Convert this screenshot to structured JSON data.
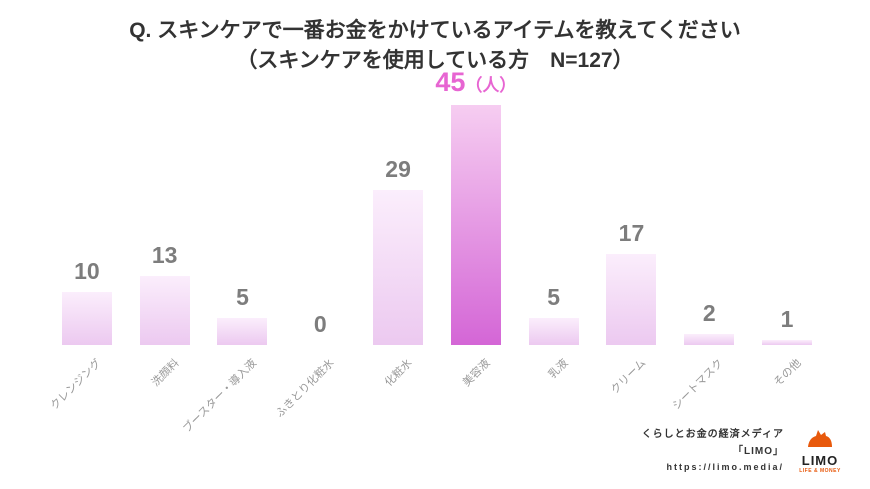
{
  "title": {
    "line1": "Q. スキンケアで一番お金をかけているアイテムを教えてください",
    "line2": "（スキンケアを使用している方　N=127）"
  },
  "chart_data": {
    "type": "bar",
    "title": "Q. スキンケアで一番お金をかけているアイテムを教えてください（スキンケアを使用している方 N=127）",
    "categories": [
      "クレンジング",
      "洗顔料",
      "ブースター・導入液",
      "ふきとり化粧水",
      "化粧水",
      "美容液",
      "乳液",
      "クリーム",
      "シートマスク",
      "その他"
    ],
    "values": [
      10,
      13,
      5,
      0,
      29,
      45,
      5,
      17,
      2,
      1
    ],
    "unit": "人",
    "n": 127,
    "highlight_index": 5,
    "highlight_unit": "（人）",
    "xlabel": "",
    "ylabel": "",
    "ylim": [
      0,
      45
    ],
    "grid": false,
    "legend": false,
    "bar_color_top": "#fbeefc",
    "bar_color_bottom": "#ecc9f0",
    "highlight_color_top": "#f6cdf1",
    "highlight_color_bottom": "#d466d6",
    "value_label_color": "#7d7d7d",
    "highlight_label_color": "#e765d2",
    "category_label_color": "#999999"
  },
  "footer": {
    "line1": "くらしとお金の経済メディア",
    "line2": "「LIMO」",
    "line3": "https://limo.media/",
    "logo_text": "LIMO",
    "logo_sub": "LIFE & MONEY",
    "logo_color": "#E8590C"
  }
}
